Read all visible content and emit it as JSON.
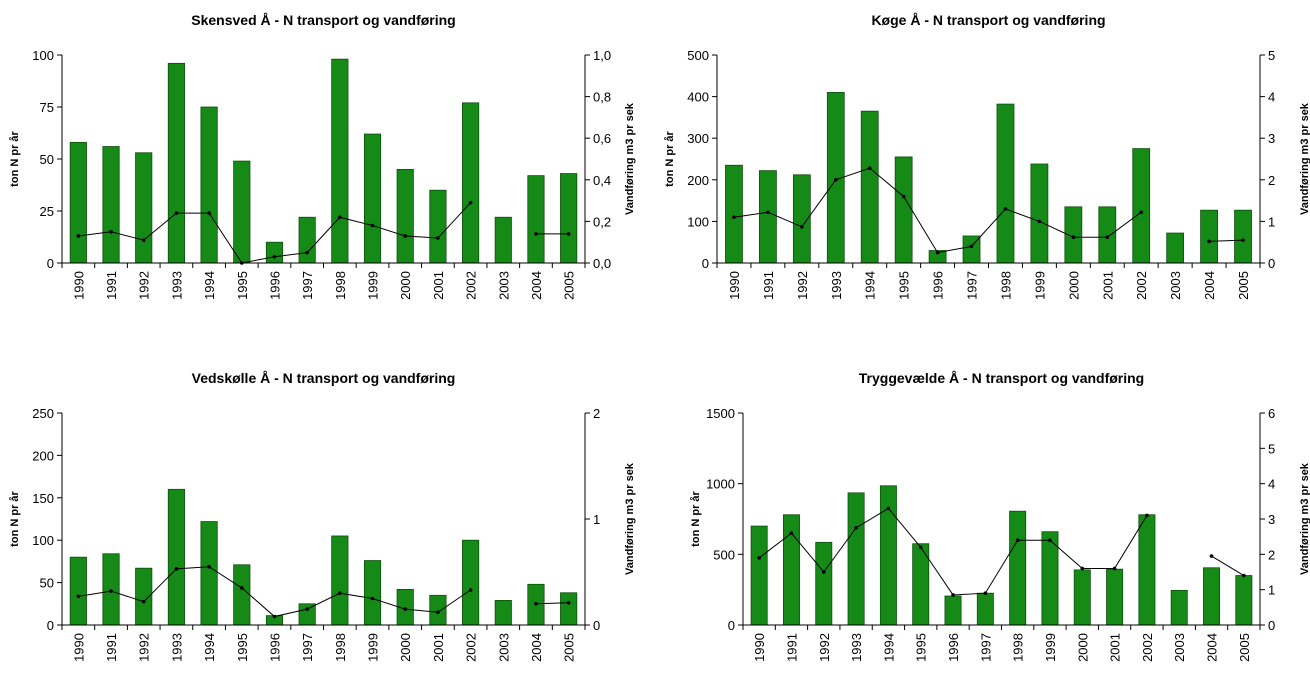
{
  "chart_data": [
    {
      "type": "bar",
      "title": "Skensved Å - N transport og vandføring",
      "ylabel": "ton N pr år",
      "y2label": "Vandføring m3 pr sek",
      "categories": [
        "1990",
        "1991",
        "1992",
        "1993",
        "1994",
        "1995",
        "1996",
        "1997",
        "1998",
        "1999",
        "2000",
        "2001",
        "2002",
        "2003",
        "2004",
        "2005"
      ],
      "series": [
        {
          "type": "bar",
          "color": "#168a16",
          "values": [
            58,
            56,
            53,
            96,
            75,
            49,
            10,
            22,
            98,
            62,
            45,
            35,
            77,
            22,
            42,
            43
          ]
        },
        {
          "type": "line",
          "axis": "y2",
          "color": "#000000",
          "values": [
            0.13,
            0.15,
            0.11,
            0.24,
            0.24,
            0.0,
            0.03,
            0.05,
            0.22,
            0.18,
            0.13,
            0.12,
            0.29,
            null,
            0.14,
            0.14
          ]
        }
      ],
      "ylim": [
        0,
        100
      ],
      "yticks": [
        0,
        25,
        50,
        75,
        100
      ],
      "y2lim": [
        0,
        1
      ],
      "y2ticks": [
        {
          "value": 0,
          "label": "0,0"
        },
        {
          "value": 0.2,
          "label": "0,2"
        },
        {
          "value": 0.4,
          "label": "0,4"
        },
        {
          "value": 0.6,
          "label": "0,6"
        },
        {
          "value": 0.8,
          "label": "0,8"
        },
        {
          "value": 1,
          "label": "1,0"
        }
      ]
    },
    {
      "type": "bar",
      "title": "Køge Å - N transport og vandføring",
      "ylabel": "ton N pr år",
      "y2label": "Vandføring m3 pr sek",
      "categories": [
        "1990",
        "1991",
        "1992",
        "1993",
        "1994",
        "1995",
        "1996",
        "1997",
        "1998",
        "1999",
        "2000",
        "2001",
        "2002",
        "2003",
        "2004",
        "2005"
      ],
      "series": [
        {
          "type": "bar",
          "color": "#168a16",
          "values": [
            235,
            222,
            212,
            410,
            365,
            255,
            30,
            65,
            382,
            238,
            135,
            135,
            275,
            72,
            127,
            127
          ]
        },
        {
          "type": "line",
          "axis": "y2",
          "color": "#000000",
          "values": [
            1.1,
            1.22,
            0.87,
            2.0,
            2.28,
            1.6,
            0.25,
            0.4,
            1.3,
            1.0,
            0.62,
            0.62,
            1.22,
            null,
            0.52,
            0.55
          ]
        }
      ],
      "ylim": [
        0,
        500
      ],
      "yticks": [
        0,
        100,
        200,
        300,
        400,
        500
      ],
      "y2lim": [
        0,
        5
      ],
      "y2ticks": [
        0,
        1,
        2,
        3,
        4,
        5
      ]
    },
    {
      "type": "bar",
      "title": "Vedskølle Å - N transport og vandføring",
      "ylabel": "ton N pr år",
      "y2label": "Vandføring m3 pr sek",
      "categories": [
        "1990",
        "1991",
        "1992",
        "1993",
        "1994",
        "1995",
        "1996",
        "1997",
        "1998",
        "1999",
        "2000",
        "2001",
        "2002",
        "2003",
        "2004",
        "2005"
      ],
      "series": [
        {
          "type": "bar",
          "color": "#168a16",
          "values": [
            80,
            84,
            67,
            160,
            122,
            71,
            11,
            25,
            105,
            76,
            42,
            35,
            100,
            29,
            48,
            38
          ]
        },
        {
          "type": "line",
          "axis": "y2",
          "color": "#000000",
          "values": [
            0.27,
            0.32,
            0.22,
            0.53,
            0.55,
            0.35,
            0.08,
            0.15,
            0.3,
            0.25,
            0.15,
            0.12,
            0.33,
            null,
            0.2,
            0.21
          ]
        }
      ],
      "ylim": [
        0,
        250
      ],
      "yticks": [
        0,
        50,
        100,
        150,
        200,
        250
      ],
      "y2lim": [
        0,
        2
      ],
      "y2ticks": [
        0,
        1,
        2
      ]
    },
    {
      "type": "bar",
      "title": "Tryggevælde Å - N transport og vandføring",
      "ylabel": "ton N pr år",
      "y2label": "Vandføring m3 pr sek",
      "categories": [
        "1990",
        "1991",
        "1992",
        "1993",
        "1994",
        "1995",
        "1996",
        "1997",
        "1998",
        "1999",
        "2000",
        "2001",
        "2002",
        "2003",
        "2004",
        "2005"
      ],
      "series": [
        {
          "type": "bar",
          "color": "#168a16",
          "values": [
            700,
            780,
            585,
            935,
            985,
            575,
            205,
            225,
            805,
            660,
            390,
            395,
            780,
            245,
            405,
            350
          ]
        },
        {
          "type": "line",
          "axis": "y2",
          "color": "#000000",
          "values": [
            1.9,
            2.6,
            1.5,
            2.75,
            3.3,
            2.2,
            0.85,
            0.9,
            2.4,
            2.4,
            1.6,
            1.6,
            3.1,
            null,
            1.95,
            1.4
          ]
        }
      ],
      "ylim": [
        0,
        1500
      ],
      "yticks": [
        0,
        500,
        1000,
        1500
      ],
      "y2lim": [
        0,
        6
      ],
      "y2ticks": [
        0,
        1,
        2,
        3,
        4,
        5,
        6
      ]
    }
  ]
}
